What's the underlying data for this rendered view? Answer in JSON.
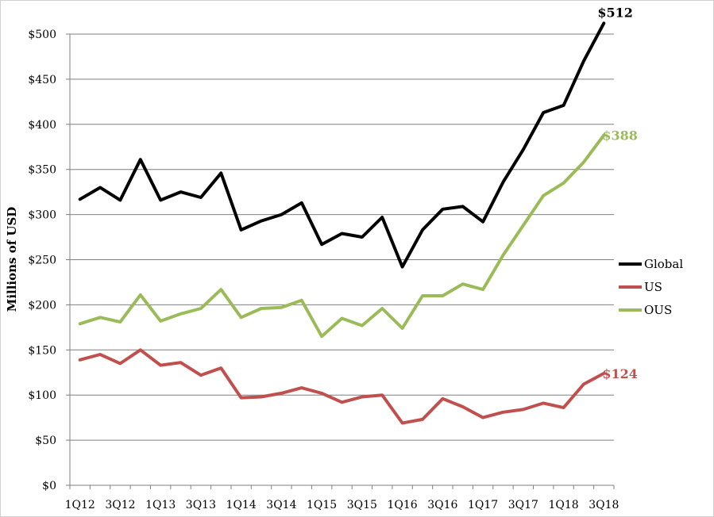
{
  "chart_data": {
    "type": "line",
    "title": "",
    "xlabel": "",
    "ylabel": "Millions of USD",
    "ylim": [
      0,
      500
    ],
    "y_ticks": [
      0,
      50,
      100,
      150,
      200,
      250,
      300,
      350,
      400,
      450,
      500
    ],
    "y_tick_labels": [
      "$0",
      "$50",
      "$100",
      "$150",
      "$200",
      "$250",
      "$300",
      "$350",
      "$400",
      "$450",
      "$500"
    ],
    "grid": "horizontal",
    "legend_position": "right",
    "x": [
      "1Q12",
      "2Q12",
      "3Q12",
      "4Q12",
      "1Q13",
      "2Q13",
      "3Q13",
      "4Q13",
      "1Q14",
      "2Q14",
      "3Q14",
      "4Q14",
      "1Q15",
      "2Q15",
      "3Q15",
      "4Q15",
      "1Q16",
      "2Q16",
      "3Q16",
      "4Q16",
      "1Q17",
      "2Q17",
      "3Q17",
      "4Q17",
      "1Q18",
      "2Q18",
      "3Q18"
    ],
    "x_tick_labels": [
      "1Q12",
      "3Q12",
      "1Q13",
      "3Q13",
      "1Q14",
      "3Q14",
      "1Q15",
      "3Q15",
      "1Q16",
      "3Q16",
      "1Q17",
      "3Q17",
      "1Q18",
      "3Q18"
    ],
    "series": [
      {
        "name": "Global",
        "color": "#000000",
        "values": [
          317,
          330,
          316,
          361,
          316,
          325,
          319,
          346,
          283,
          293,
          300,
          313,
          267,
          279,
          275,
          297,
          242,
          283,
          306,
          309,
          292,
          336,
          372,
          413,
          421,
          470,
          512
        ],
        "end_label": "$512"
      },
      {
        "name": "US",
        "color": "#c0504d",
        "values": [
          139,
          145,
          135,
          150,
          133,
          136,
          122,
          130,
          97,
          98,
          102,
          108,
          102,
          92,
          98,
          100,
          69,
          73,
          96,
          87,
          75,
          81,
          84,
          91,
          86,
          112,
          124
        ],
        "end_label": "$124"
      },
      {
        "name": "OUS",
        "color": "#9bbb59",
        "values": [
          179,
          186,
          181,
          211,
          182,
          190,
          196,
          217,
          186,
          196,
          197,
          205,
          165,
          185,
          177,
          196,
          174,
          210,
          210,
          223,
          217,
          255,
          288,
          321,
          335,
          358,
          388
        ],
        "end_label": "$388"
      }
    ]
  }
}
